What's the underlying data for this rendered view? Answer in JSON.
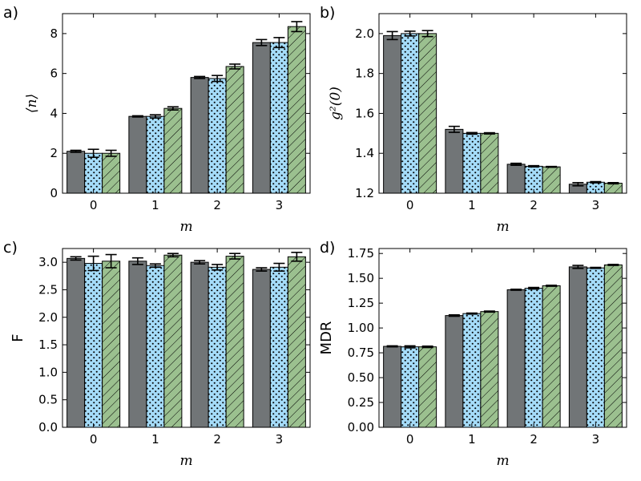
{
  "colors": {
    "series1": "#717577",
    "series2": "#a5dcf9",
    "series3": "#9bc08f",
    "axis": "#000000",
    "errorbar": "#000000"
  },
  "chart_data": [
    {
      "type": "bar",
      "panel_label": "a)",
      "xlabel": "m",
      "ylabel": "⟨n⟩",
      "categories": [
        "0",
        "1",
        "2",
        "3"
      ],
      "ylim": [
        0,
        9
      ],
      "yticks": [
        "0",
        "2",
        "4",
        "6",
        "8"
      ],
      "series": [
        {
          "pattern": "solid",
          "values": [
            2.1,
            3.85,
            5.8,
            7.55
          ],
          "errors": [
            0.05,
            0.03,
            0.05,
            0.15
          ]
        },
        {
          "pattern": "dots",
          "values": [
            2.0,
            3.85,
            5.75,
            7.55
          ],
          "errors": [
            0.2,
            0.08,
            0.15,
            0.25
          ]
        },
        {
          "pattern": "hatch",
          "values": [
            2.0,
            4.25,
            6.35,
            8.35
          ],
          "errors": [
            0.15,
            0.08,
            0.12,
            0.25
          ]
        }
      ]
    },
    {
      "type": "bar",
      "panel_label": "b)",
      "xlabel": "m",
      "ylabel": "g²(0)",
      "categories": [
        "0",
        "1",
        "2",
        "3"
      ],
      "ylim": [
        1.2,
        2.1
      ],
      "yticks": [
        "1.2",
        "1.4",
        "1.6",
        "1.8",
        "2.0"
      ],
      "series": [
        {
          "pattern": "solid",
          "values": [
            1.99,
            1.52,
            1.345,
            1.245
          ],
          "errors": [
            0.02,
            0.015,
            0.005,
            0.008
          ]
        },
        {
          "pattern": "dots",
          "values": [
            2.0,
            1.5,
            1.335,
            1.255
          ],
          "errors": [
            0.012,
            0.004,
            0.003,
            0.003
          ]
        },
        {
          "pattern": "hatch",
          "values": [
            2.0,
            1.5,
            1.332,
            1.25
          ],
          "errors": [
            0.015,
            0.003,
            0.002,
            0.003
          ]
        }
      ]
    },
    {
      "type": "bar",
      "panel_label": "c)",
      "xlabel": "m",
      "ylabel": "F",
      "categories": [
        "0",
        "1",
        "2",
        "3"
      ],
      "ylim": [
        0,
        3.25
      ],
      "yticks": [
        "0.0",
        "0.5",
        "1.0",
        "1.5",
        "2.0",
        "2.5",
        "3.0"
      ],
      "series": [
        {
          "pattern": "solid",
          "values": [
            3.07,
            3.02,
            3.0,
            2.87
          ],
          "errors": [
            0.03,
            0.06,
            0.03,
            0.03
          ]
        },
        {
          "pattern": "dots",
          "values": [
            2.98,
            2.94,
            2.91,
            2.91
          ],
          "errors": [
            0.13,
            0.03,
            0.05,
            0.07
          ]
        },
        {
          "pattern": "hatch",
          "values": [
            3.02,
            3.13,
            3.11,
            3.1
          ],
          "errors": [
            0.12,
            0.03,
            0.05,
            0.08
          ]
        }
      ]
    },
    {
      "type": "bar",
      "panel_label": "d)",
      "xlabel": "m",
      "ylabel": "MDR",
      "categories": [
        "0",
        "1",
        "2",
        "3"
      ],
      "ylim": [
        0,
        1.8
      ],
      "yticks": [
        "0.00",
        "0.25",
        "0.50",
        "0.75",
        "1.00",
        "1.25",
        "1.50",
        "1.75"
      ],
      "series": [
        {
          "pattern": "solid",
          "values": [
            0.815,
            1.125,
            1.385,
            1.615
          ],
          "errors": [
            0.005,
            0.007,
            0.005,
            0.015
          ]
        },
        {
          "pattern": "dots",
          "values": [
            0.81,
            1.145,
            1.4,
            1.605
          ],
          "errors": [
            0.01,
            0.005,
            0.008,
            0.005
          ]
        },
        {
          "pattern": "hatch",
          "values": [
            0.81,
            1.165,
            1.425,
            1.635
          ],
          "errors": [
            0.007,
            0.005,
            0.005,
            0.005
          ]
        }
      ]
    }
  ]
}
